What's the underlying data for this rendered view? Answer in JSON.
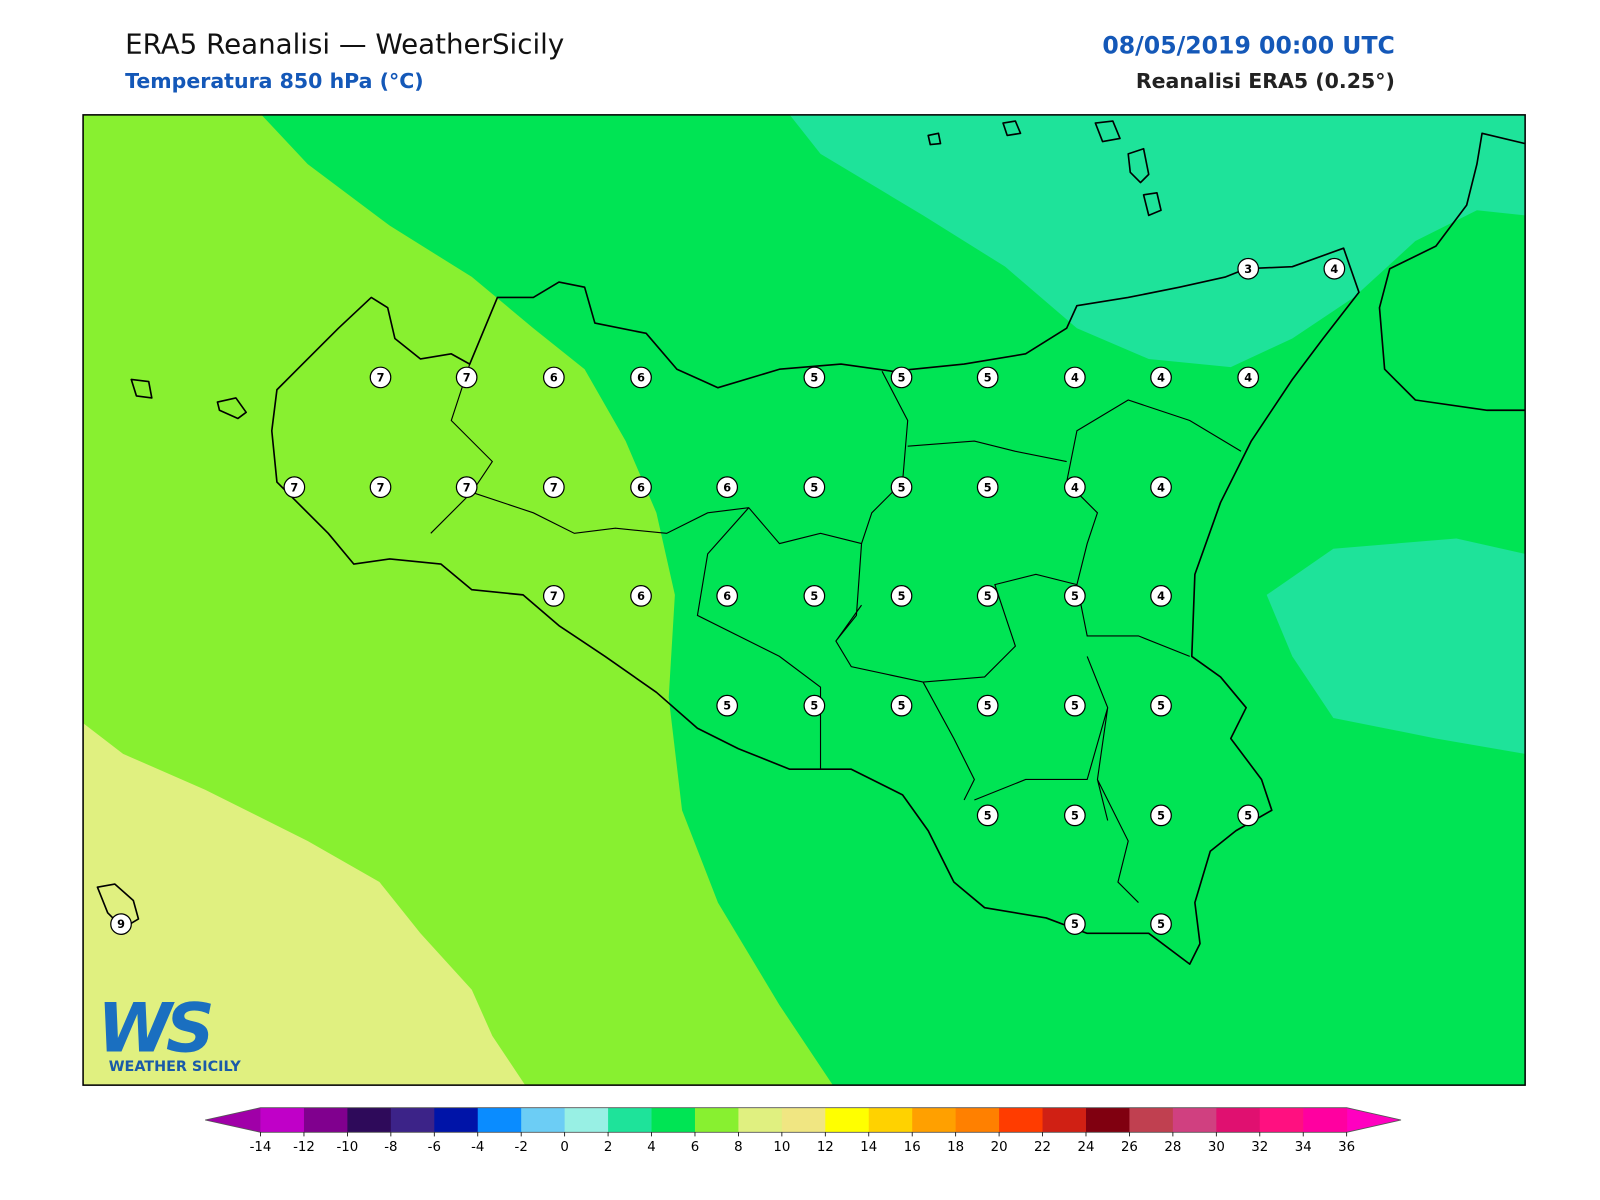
{
  "header": {
    "title": "ERA5 Reanalisi — WeatherSicily",
    "subtitle": "Temperatura 850 hPa (°C)",
    "date": "08/05/2019 00:00 UTC",
    "source": "Reanalisi ERA5 (0.25°)"
  },
  "map": {
    "points": {
      "values": [
        3,
        4,
        7,
        7,
        6,
        6,
        5,
        5,
        5,
        4,
        4,
        4,
        7,
        7,
        7,
        7,
        6,
        6,
        5,
        5,
        5,
        4,
        4,
        7,
        6,
        6,
        5,
        5,
        5,
        5,
        4,
        5,
        5,
        5,
        5,
        5,
        5,
        5,
        5,
        5,
        5,
        9,
        5,
        5
      ]
    }
  },
  "logo": {
    "mark": "WS",
    "name": "WEATHER SICILY"
  },
  "colorbar": {
    "ticks": [
      -14,
      -12,
      -10,
      -8,
      -6,
      -4,
      -2,
      0,
      2,
      4,
      6,
      8,
      10,
      12,
      14,
      16,
      18,
      20,
      22,
      24,
      26,
      28,
      30,
      32,
      34,
      36
    ],
    "colors": [
      "#c000c8",
      "#80008e",
      "#2e0a5a",
      "#3c2388",
      "#0014a8",
      "#0a8cff",
      "#6ccdf5",
      "#98f0e4",
      "#1ee39a",
      "#00e454",
      "#88f030",
      "#e0f080",
      "#f0e682",
      "#ffff00",
      "#ffd200",
      "#ffa000",
      "#ff8000",
      "#ff3c00",
      "#d02014",
      "#800010",
      "#c04050",
      "#d04080",
      "#e01070",
      "#ff1080",
      "#ff00a0"
    ],
    "under_color": "#a000a8",
    "over_color": "#ff00c0"
  }
}
